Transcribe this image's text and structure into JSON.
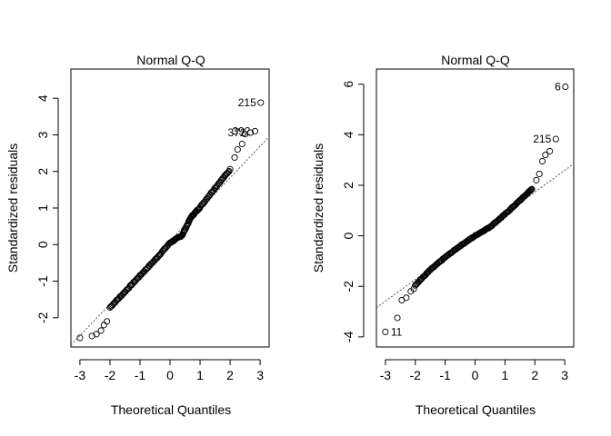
{
  "chart_data": [
    {
      "type": "scatter",
      "title": "Normal Q-Q",
      "xlabel": "Theoretical Quantiles",
      "ylabel": "Standardized residuals",
      "xlim": [
        -3.3,
        3.3
      ],
      "ylim": [
        -2.8,
        4.8
      ],
      "xticks": [
        -3,
        -2,
        -1,
        0,
        1,
        2,
        3
      ],
      "yticks": [
        -2,
        -1,
        0,
        1,
        2,
        3,
        4
      ],
      "reference_line": {
        "x": [
          -3.3,
          3.3
        ],
        "y": [
          -2.75,
          2.95
        ]
      },
      "point_style": "open-circle",
      "body_points": [
        [
          -2.0,
          -1.72
        ],
        [
          -1.5,
          -1.29
        ],
        [
          -1.0,
          -0.85
        ],
        [
          -0.5,
          -0.42
        ],
        [
          0.0,
          0.05
        ],
        [
          0.4,
          0.25
        ],
        [
          0.7,
          0.75
        ],
        [
          1.0,
          1.02
        ],
        [
          1.5,
          1.55
        ],
        [
          2.0,
          2.05
        ]
      ],
      "body_count": 150,
      "points": [
        {
          "x": 3.02,
          "y": 3.88,
          "label": "215"
        },
        {
          "x": 2.83,
          "y": 3.1,
          "label": "392"
        },
        {
          "x": 2.68,
          "y": 3.06,
          "label": "372"
        },
        {
          "x": 2.5,
          "y": 3.02
        },
        {
          "x": 2.4,
          "y": 2.75
        },
        {
          "x": 2.25,
          "y": 2.6
        },
        {
          "x": 2.15,
          "y": 2.38
        },
        {
          "x": -3.0,
          "y": -2.55
        },
        {
          "x": -2.6,
          "y": -2.5
        },
        {
          "x": -2.45,
          "y": -2.45
        },
        {
          "x": -2.3,
          "y": -2.35
        },
        {
          "x": -2.2,
          "y": -2.2
        },
        {
          "x": -2.1,
          "y": -2.1
        }
      ]
    },
    {
      "type": "scatter",
      "title": "Normal Q-Q",
      "xlabel": "Theoretical Quantiles",
      "ylabel": "Standardized residuals",
      "xlim": [
        -3.3,
        3.3
      ],
      "ylim": [
        -4.4,
        6.6
      ],
      "xticks": [
        -3,
        -2,
        -1,
        0,
        1,
        2,
        3
      ],
      "yticks": [
        -4,
        -2,
        0,
        2,
        4,
        6
      ],
      "reference_line": {
        "x": [
          -3.3,
          3.3
        ],
        "y": [
          -2.85,
          2.85
        ]
      },
      "point_style": "open-circle",
      "body_points": [
        [
          -2.0,
          -1.95
        ],
        [
          -1.5,
          -1.35
        ],
        [
          -1.0,
          -0.85
        ],
        [
          -0.5,
          -0.4
        ],
        [
          0.0,
          0.0
        ],
        [
          0.5,
          0.35
        ],
        [
          1.0,
          0.85
        ],
        [
          1.5,
          1.4
        ],
        [
          1.9,
          1.85
        ]
      ],
      "body_count": 140,
      "points": [
        {
          "x": 3.02,
          "y": 5.9,
          "label": "6"
        },
        {
          "x": 2.7,
          "y": 3.83,
          "label": "215"
        },
        {
          "x": 2.5,
          "y": 3.35
        },
        {
          "x": 2.35,
          "y": 3.2
        },
        {
          "x": 2.25,
          "y": 2.95
        },
        {
          "x": 2.15,
          "y": 2.45
        },
        {
          "x": 2.05,
          "y": 2.2
        },
        {
          "x": -3.0,
          "y": -3.8,
          "label": "11"
        },
        {
          "x": -2.6,
          "y": -3.25
        },
        {
          "x": -2.45,
          "y": -2.55
        },
        {
          "x": -2.3,
          "y": -2.45
        },
        {
          "x": -2.15,
          "y": -2.2
        },
        {
          "x": -2.05,
          "y": -2.1
        }
      ]
    }
  ]
}
